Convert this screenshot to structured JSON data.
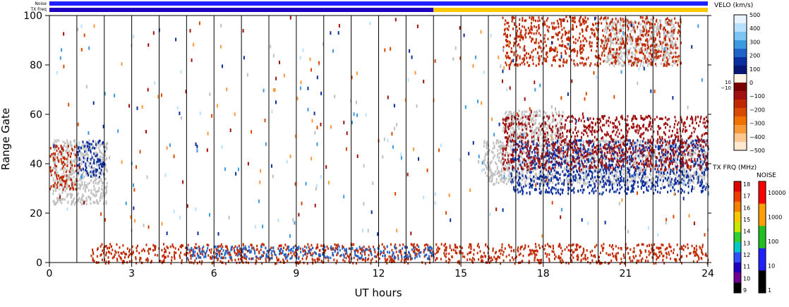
{
  "top_strips": {
    "noise_label": "Noise",
    "txfreq_label": "TX Freq"
  },
  "colorbars": {
    "velo": {
      "title": "VELO (km/s)",
      "ticks": [
        "500",
        "400",
        "300",
        "200",
        "100",
        "0",
        "−100",
        "−200",
        "−300",
        "−400",
        "−500"
      ],
      "inner_ticks": [
        "10",
        "−10"
      ],
      "colors": [
        "#e8f4ff",
        "#b8e0ff",
        "#7cc4f4",
        "#3c9ae0",
        "#1f63c8",
        "#0a2ea0",
        "#061672",
        "#fff4e6",
        "#7a0000",
        "#a01010",
        "#c02800",
        "#d84a00",
        "#f07000",
        "#f89a3a",
        "#fcc890",
        "#ffe8d0"
      ]
    },
    "txfreq": {
      "title": "TX FRQ (MHz)",
      "ticks": [
        "18",
        "17",
        "16",
        "15",
        "14",
        "13",
        "12",
        "11",
        "10",
        "9"
      ],
      "colors": [
        "#e00000",
        "#f03c00",
        "#f88000",
        "#f8c800",
        "#c8e800",
        "#30d030",
        "#00c8c8",
        "#3050ff",
        "#2000c0",
        "#700090",
        "#000000"
      ]
    },
    "noise": {
      "title": "NOISE",
      "ticks": [
        "10000",
        "1000",
        "100",
        "10",
        "1"
      ],
      "colors": [
        "#ff0000",
        "#ffa000",
        "#20c020",
        "#2020ff",
        "#000000"
      ]
    }
  },
  "chart_data": {
    "type": "heatmap",
    "title": "",
    "xlabel": "UT hours",
    "ylabel": "Range Gate",
    "xlim": [
      0,
      24
    ],
    "ylim": [
      0,
      100
    ],
    "x_ticks": [
      0,
      3,
      6,
      9,
      12,
      15,
      18,
      21,
      24
    ],
    "y_ticks": [
      0,
      20,
      40,
      60,
      80,
      100
    ],
    "hour_gridlines": true,
    "noise_strip": {
      "segments": [
        {
          "x0": 0,
          "x1": 24,
          "level": "10"
        }
      ]
    },
    "txfreq_strip": {
      "segments": [
        {
          "x0": 0,
          "x1": 14,
          "mhz": 10
        },
        {
          "x0": 14,
          "x1": 24,
          "mhz": 15
        }
      ]
    },
    "features": [
      {
        "label": "ground scatter",
        "x0": 15.8,
        "x1": 24,
        "y0": 32,
        "y1": 50,
        "velocity": 0
      },
      {
        "label": "ground scatter",
        "x0": 16.5,
        "x1": 18.7,
        "y0": 50,
        "y1": 62,
        "velocity": 0
      },
      {
        "label": "ground scatter",
        "x0": 20.2,
        "x1": 22.8,
        "y0": 80,
        "y1": 99,
        "velocity": 0
      },
      {
        "label": "ground scatter",
        "x0": 0.1,
        "x1": 2.1,
        "y0": 24,
        "y1": 50,
        "velocity": 0
      },
      {
        "label": "near-range echoes",
        "x0": 1.5,
        "x1": 24,
        "y0": 0,
        "y1": 8,
        "velocity": -150
      },
      {
        "label": "near-range echoes",
        "x0": 5,
        "x1": 14,
        "y0": 2,
        "y1": 7,
        "velocity": 150
      },
      {
        "label": "receding echoes",
        "x0": 0,
        "x1": 1,
        "y0": 30,
        "y1": 48,
        "velocity": -150
      },
      {
        "label": "approaching echoes",
        "x0": 1,
        "x1": 2,
        "y0": 35,
        "y1": 50,
        "velocity": 120
      },
      {
        "label": "approaching echoes",
        "x0": 16.8,
        "x1": 24,
        "y0": 28,
        "y1": 50,
        "velocity": 120
      },
      {
        "label": "receding echoes",
        "x0": 16.5,
        "x1": 24,
        "y0": 38,
        "y1": 60,
        "velocity": -120
      },
      {
        "label": "scattered echoes",
        "x0": 16.5,
        "x1": 23,
        "y0": 80,
        "y1": 100,
        "velocity": -150
      }
    ]
  }
}
